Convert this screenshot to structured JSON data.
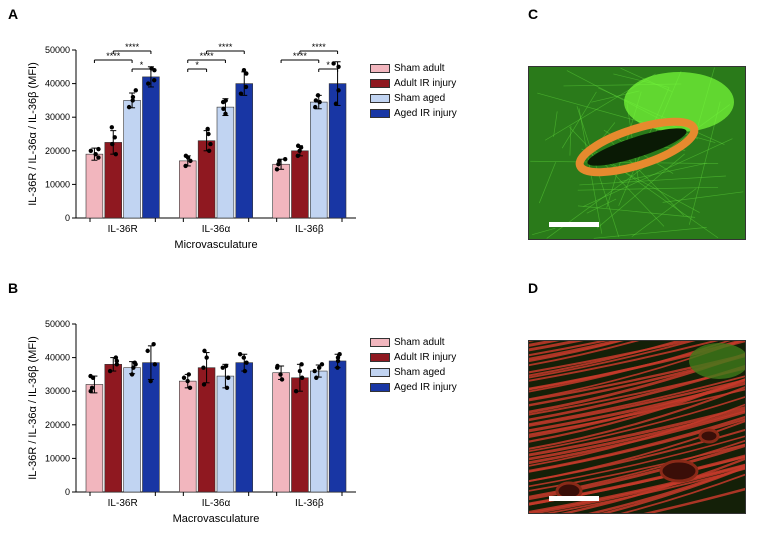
{
  "colors": {
    "sham_adult": "#f2b6be",
    "adult_ir": "#8f1820",
    "sham_aged": "#c1d4f2",
    "aged_ir": "#1836a4"
  },
  "legend": [
    {
      "key": "sham_adult",
      "label": "Sham adult"
    },
    {
      "key": "adult_ir",
      "label": "Adult IR injury"
    },
    {
      "key": "sham_aged",
      "label": "Sham aged"
    },
    {
      "key": "aged_ir",
      "label": "Aged IR injury"
    }
  ],
  "panelA": {
    "letter": "A",
    "ylabel": "IL-36R / IL-36α / IL-36β (MFI)",
    "xlabel": "Microvasculature",
    "ylim": [
      0,
      50000
    ],
    "ytick_step": 10000,
    "ticks_fontsize": 9,
    "label_fontsize": 11,
    "categories": [
      "IL-36R",
      "IL-36α",
      "IL-36β"
    ],
    "groups": [
      {
        "name": "IL-36R",
        "bars": [
          {
            "series": "sham_adult",
            "mean": 19000,
            "err": 1800,
            "points": [
              18000,
              19000,
              20000,
              20500
            ]
          },
          {
            "series": "adult_ir",
            "mean": 22500,
            "err": 3500,
            "points": [
              19000,
              22000,
              24000,
              27000
            ]
          },
          {
            "series": "sham_aged",
            "mean": 35000,
            "err": 2200,
            "points": [
              33000,
              35000,
              36000,
              38000
            ]
          },
          {
            "series": "aged_ir",
            "mean": 42000,
            "err": 3000,
            "points": [
              40000,
              41000,
              44000,
              44500
            ]
          }
        ],
        "sig": [
          {
            "from": 0,
            "to": 2,
            "level": 2,
            "text": "****"
          },
          {
            "from": 1,
            "to": 3,
            "level": 3,
            "text": "****"
          },
          {
            "from": 2,
            "to": 3,
            "level": 1,
            "text": "*"
          }
        ]
      },
      {
        "name": "IL-36α",
        "bars": [
          {
            "series": "sham_adult",
            "mean": 17000,
            "err": 1500,
            "points": [
              15500,
              17000,
              18000,
              18500
            ]
          },
          {
            "series": "adult_ir",
            "mean": 23000,
            "err": 3000,
            "points": [
              20000,
              22000,
              25000,
              26500
            ]
          },
          {
            "series": "sham_aged",
            "mean": 33000,
            "err": 2500,
            "points": [
              31000,
              32500,
              34500,
              35000
            ]
          },
          {
            "series": "aged_ir",
            "mean": 40000,
            "err": 3500,
            "points": [
              37000,
              39000,
              43000,
              44000
            ]
          }
        ],
        "sig": [
          {
            "from": 0,
            "to": 1,
            "level": 1,
            "text": "*"
          },
          {
            "from": 0,
            "to": 2,
            "level": 2,
            "text": "****"
          },
          {
            "from": 1,
            "to": 3,
            "level": 3,
            "text": "****"
          }
        ]
      },
      {
        "name": "IL-36β",
        "bars": [
          {
            "series": "sham_adult",
            "mean": 16000,
            "err": 1500,
            "points": [
              14500,
              16000,
              17000,
              17500
            ]
          },
          {
            "series": "adult_ir",
            "mean": 20000,
            "err": 1500,
            "points": [
              18500,
              20000,
              21000,
              21500
            ]
          },
          {
            "series": "sham_aged",
            "mean": 34500,
            "err": 2000,
            "points": [
              33000,
              34500,
              35000,
              36500
            ]
          },
          {
            "series": "aged_ir",
            "mean": 40000,
            "err": 6500,
            "points": [
              34000,
              38000,
              45000,
              46000
            ]
          }
        ],
        "sig": [
          {
            "from": 0,
            "to": 2,
            "level": 2,
            "text": "****"
          },
          {
            "from": 1,
            "to": 3,
            "level": 3,
            "text": "****"
          },
          {
            "from": 2,
            "to": 3,
            "level": 1,
            "text": "*"
          }
        ]
      }
    ]
  },
  "panelB": {
    "letter": "B",
    "ylabel": "IL-36R / IL-36α / IL-36β (MFI)",
    "xlabel": "Macrovasculature",
    "ylim": [
      0,
      50000
    ],
    "ytick_step": 10000,
    "ticks_fontsize": 9,
    "label_fontsize": 11,
    "categories": [
      "IL-36R",
      "IL-36α",
      "IL-36β"
    ],
    "groups": [
      {
        "name": "IL-36R",
        "bars": [
          {
            "series": "sham_adult",
            "mean": 32000,
            "err": 2500,
            "points": [
              30000,
              31000,
              34000,
              34500
            ]
          },
          {
            "series": "adult_ir",
            "mean": 38000,
            "err": 2000,
            "points": [
              36000,
              38000,
              39000,
              40000
            ]
          },
          {
            "series": "sham_aged",
            "mean": 37000,
            "err": 1800,
            "points": [
              35000,
              37000,
              38000,
              38500
            ]
          },
          {
            "series": "aged_ir",
            "mean": 38500,
            "err": 5000,
            "points": [
              33000,
              38000,
              42000,
              44000
            ]
          }
        ],
        "sig": []
      },
      {
        "name": "IL-36α",
        "bars": [
          {
            "series": "sham_adult",
            "mean": 33000,
            "err": 2000,
            "points": [
              31000,
              33000,
              34000,
              35000
            ]
          },
          {
            "series": "adult_ir",
            "mean": 37000,
            "err": 4500,
            "points": [
              32000,
              37000,
              40000,
              42000
            ]
          },
          {
            "series": "sham_aged",
            "mean": 34500,
            "err": 3500,
            "points": [
              31000,
              34000,
              37000,
              37500
            ]
          },
          {
            "series": "aged_ir",
            "mean": 38500,
            "err": 2500,
            "points": [
              36000,
              38500,
              40000,
              41000
            ]
          }
        ],
        "sig": []
      },
      {
        "name": "IL-36β",
        "bars": [
          {
            "series": "sham_adult",
            "mean": 35500,
            "err": 2000,
            "points": [
              33500,
              35000,
              37000,
              37500
            ]
          },
          {
            "series": "adult_ir",
            "mean": 34000,
            "err": 4000,
            "points": [
              30000,
              34000,
              36000,
              38000
            ]
          },
          {
            "series": "sham_aged",
            "mean": 36000,
            "err": 1800,
            "points": [
              34000,
              36000,
              37000,
              38000
            ]
          },
          {
            "series": "aged_ir",
            "mean": 39000,
            "err": 2000,
            "points": [
              37000,
              39000,
              40000,
              41000
            ]
          }
        ],
        "sig": []
      }
    ]
  },
  "panelC": {
    "letter": "C"
  },
  "panelD": {
    "letter": "D"
  }
}
